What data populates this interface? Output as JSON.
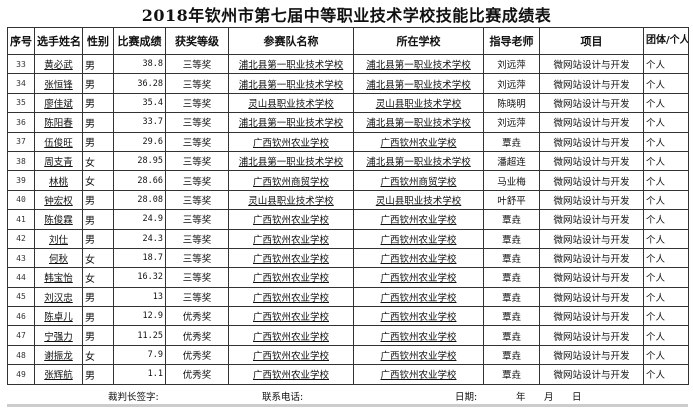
{
  "title": "2018年钦州市第七届中等职业技术学校技能比赛成绩表",
  "headers": [
    "序号",
    "选手姓名",
    "性别",
    "比赛成绩",
    "获奖等级",
    "参赛队名称",
    "所在学校",
    "指导老师",
    "项目",
    "团体/个人"
  ],
  "rows": [
    [
      "33",
      "黄必武",
      "男",
      "38.8",
      "三等奖",
      "浦北县第一职业技术学校",
      "浦北县第一职业技术学校",
      "刘远萍",
      "微网站设计与开发",
      "个人"
    ],
    [
      "34",
      "张恒锋",
      "男",
      "36.28",
      "三等奖",
      "浦北县第一职业技术学校",
      "浦北县第一职业技术学校",
      "刘远萍",
      "微网站设计与开发",
      "个人"
    ],
    [
      "35",
      "廖佳斌",
      "男",
      "35.4",
      "三等奖",
      "灵山县职业技术学校",
      "灵山县职业技术学校",
      "陈晓明",
      "微网站设计与开发",
      "个人"
    ],
    [
      "36",
      "陈阳春",
      "男",
      "33.7",
      "三等奖",
      "浦北县第一职业技术学校",
      "浦北县第一职业技术学校",
      "刘远萍",
      "微网站设计与开发",
      "个人"
    ],
    [
      "37",
      "伍俊旺",
      "男",
      "29.6",
      "三等奖",
      "广西钦州农业学校",
      "广西钦州农业学校",
      "覃垚",
      "微网站设计与开发",
      "个人"
    ],
    [
      "38",
      "周支青",
      "女",
      "28.95",
      "三等奖",
      "浦北县第一职业技术学校",
      "浦北县第一职业技术学校",
      "潘超连",
      "微网站设计与开发",
      "个人"
    ],
    [
      "39",
      "林桃",
      "女",
      "28.66",
      "三等奖",
      "广西钦州商贸学校",
      "广西钦州商贸学校",
      "马业梅",
      "微网站设计与开发",
      "个人"
    ],
    [
      "40",
      "钟宏权",
      "男",
      "28.08",
      "三等奖",
      "灵山县职业技术学校",
      "灵山县职业技术学校",
      "叶舒平",
      "微网站设计与开发",
      "个人"
    ],
    [
      "41",
      "陈俊霖",
      "男",
      "24.9",
      "三等奖",
      "广西钦州农业学校",
      "广西钦州农业学校",
      "覃垚",
      "微网站设计与开发",
      "个人"
    ],
    [
      "42",
      "刘仕",
      "男",
      "24.3",
      "三等奖",
      "广西钦州农业学校",
      "广西钦州农业学校",
      "覃垚",
      "微网站设计与开发",
      "个人"
    ],
    [
      "43",
      "何秋",
      "女",
      "18.7",
      "三等奖",
      "广西钦州农业学校",
      "广西钦州农业学校",
      "覃垚",
      "微网站设计与开发",
      "个人"
    ],
    [
      "44",
      "韩宝怡",
      "女",
      "16.32",
      "三等奖",
      "广西钦州农业学校",
      "广西钦州农业学校",
      "覃垚",
      "微网站设计与开发",
      "个人"
    ],
    [
      "45",
      "刘汉忠",
      "男",
      "13",
      "三等奖",
      "广西钦州农业学校",
      "广西钦州农业学校",
      "覃垚",
      "微网站设计与开发",
      "个人"
    ],
    [
      "46",
      "陈卓儿",
      "男",
      "12.9",
      "优秀奖",
      "广西钦州农业学校",
      "广西钦州农业学校",
      "覃垚",
      "微网站设计与开发",
      "个人"
    ],
    [
      "47",
      "宁强力",
      "男",
      "11.25",
      "优秀奖",
      "广西钦州农业学校",
      "广西钦州农业学校",
      "覃垚",
      "微网站设计与开发",
      "个人"
    ],
    [
      "48",
      "谢振龙",
      "女",
      "7.9",
      "优秀奖",
      "广西钦州农业学校",
      "广西钦州农业学校",
      "覃垚",
      "微网站设计与开发",
      "个人"
    ],
    [
      "49",
      "张辉航",
      "男",
      "1.1",
      "优秀奖",
      "广西钦州农业学校",
      "广西钦州农业学校",
      "覃垚",
      "微网站设计与开发",
      "个人"
    ]
  ],
  "footer": {
    "judge_signature": "裁判长签字:",
    "phone": "联系电话:",
    "date": "日期:",
    "year": "年",
    "month": "月",
    "day": "日"
  }
}
